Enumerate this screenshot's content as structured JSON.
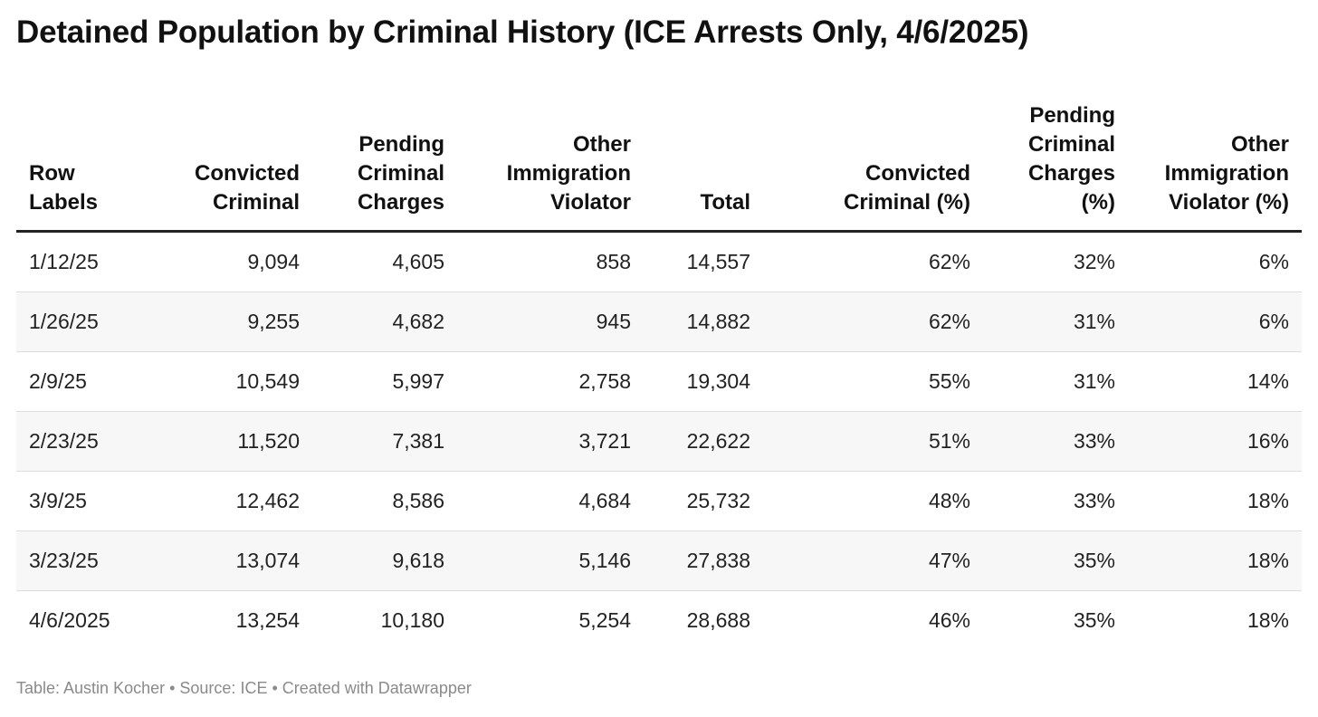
{
  "title": "Detained Population by Criminal History (ICE Arrests Only, 4/6/2025)",
  "footer": "Table: Austin Kocher • Source: ICE • Created with Datawrapper",
  "chart_data": {
    "type": "table",
    "columns": [
      [
        "Row",
        "Labels"
      ],
      [
        "Convicted",
        "Criminal"
      ],
      [
        "Pending",
        "Criminal",
        "Charges"
      ],
      [
        "Other",
        "Immigration",
        "Violator"
      ],
      [
        "Total"
      ],
      [
        "Convicted",
        "Criminal (%)"
      ],
      [
        "Pending",
        "Criminal",
        "Charges",
        "(%)"
      ],
      [
        "Other",
        "Immigration",
        "Violator (%)"
      ]
    ],
    "rows": [
      [
        "1/12/25",
        "9,094",
        "4,605",
        "858",
        "14,557",
        "62%",
        "32%",
        "6%"
      ],
      [
        "1/26/25",
        "9,255",
        "4,682",
        "945",
        "14,882",
        "62%",
        "31%",
        "6%"
      ],
      [
        "2/9/25",
        "10,549",
        "5,997",
        "2,758",
        "19,304",
        "55%",
        "31%",
        "14%"
      ],
      [
        "2/23/25",
        "11,520",
        "7,381",
        "3,721",
        "22,622",
        "51%",
        "33%",
        "16%"
      ],
      [
        "3/9/25",
        "12,462",
        "8,586",
        "4,684",
        "25,732",
        "48%",
        "33%",
        "18%"
      ],
      [
        "3/23/25",
        "13,074",
        "9,618",
        "5,146",
        "27,838",
        "47%",
        "35%",
        "18%"
      ],
      [
        "4/6/2025",
        "13,254",
        "10,180",
        "5,254",
        "28,688",
        "46%",
        "35%",
        "18%"
      ]
    ]
  }
}
